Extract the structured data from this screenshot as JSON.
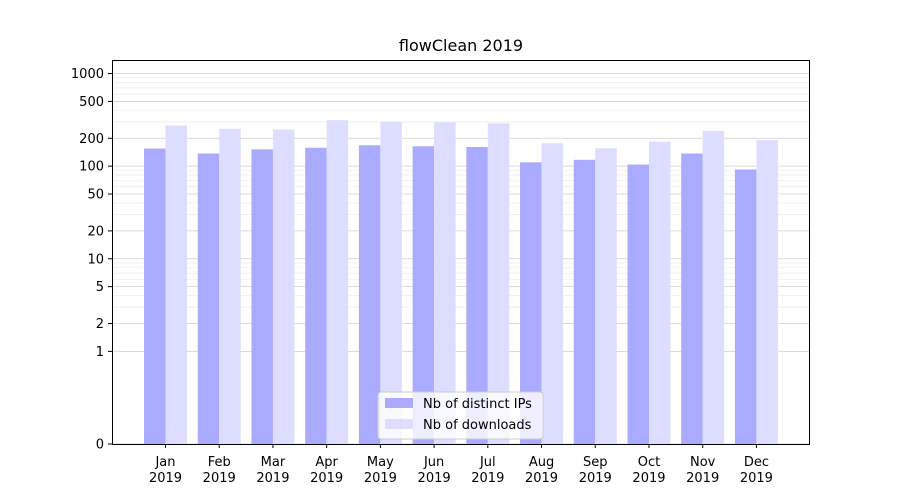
{
  "chart_data": {
    "type": "bar",
    "title": "flowClean 2019",
    "xlabel": "",
    "ylabel": "",
    "yscale": "symlog",
    "ylim": [
      0,
      1400
    ],
    "yticks": [
      0,
      1,
      2,
      5,
      10,
      20,
      50,
      100,
      200,
      500,
      1000
    ],
    "ytick_labels": [
      "0",
      "1",
      "2",
      "5",
      "10",
      "20",
      "50",
      "100",
      "200",
      "500",
      "1000"
    ],
    "grid": "horizontal",
    "legend_position": "bottom-center",
    "categories": [
      "Jan\n2019",
      "Feb\n2019",
      "Mar\n2019",
      "Apr\n2019",
      "May\n2019",
      "Jun\n2019",
      "Jul\n2019",
      "Aug\n2019",
      "Sep\n2019",
      "Oct\n2019",
      "Nov\n2019",
      "Dec\n2019"
    ],
    "series": [
      {
        "name": "Nb of distinct IPs",
        "color": "#aaaaff",
        "values": [
          155,
          137,
          152,
          158,
          168,
          164,
          161,
          110,
          117,
          104,
          137,
          92
        ]
      },
      {
        "name": "Nb of downloads",
        "color": "#ddddff",
        "values": [
          275,
          253,
          248,
          314,
          302,
          297,
          290,
          177,
          156,
          184,
          240,
          191
        ]
      }
    ]
  }
}
